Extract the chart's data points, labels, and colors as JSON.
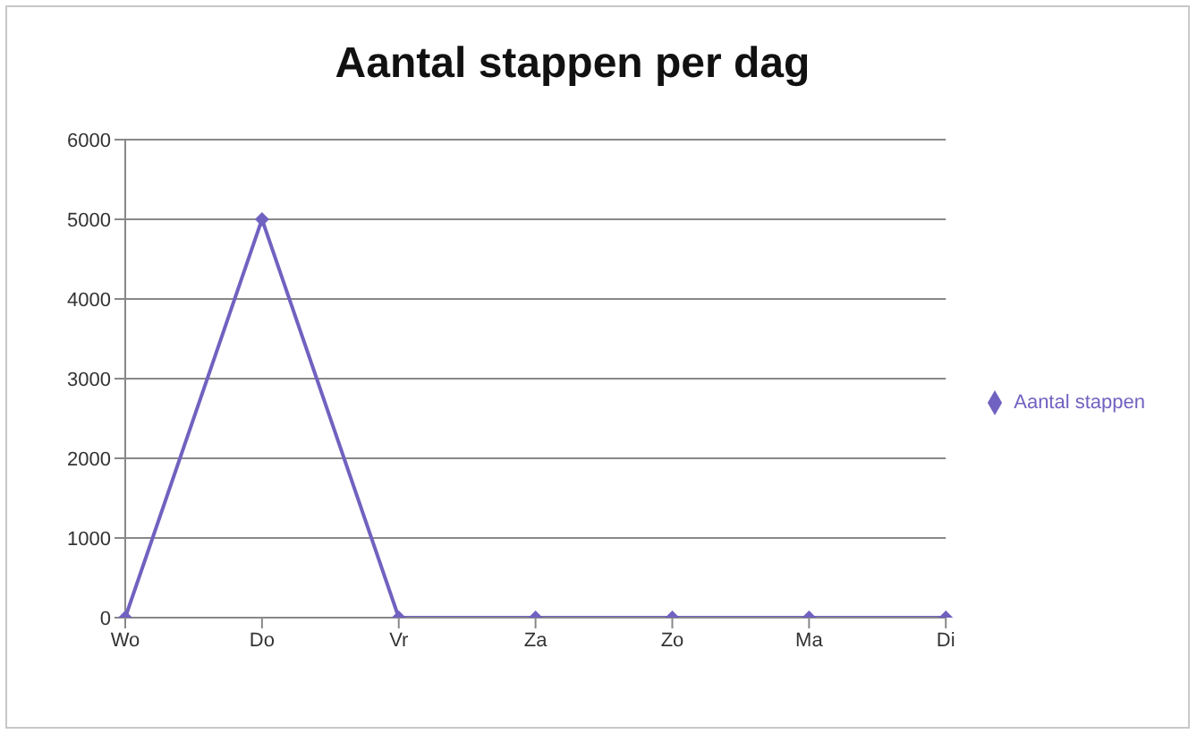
{
  "chart_data": {
    "type": "line",
    "title": "Aantal stappen per dag",
    "categories": [
      "Wo",
      "Do",
      "Vr",
      "Za",
      "Zo",
      "Ma",
      "Di"
    ],
    "series": [
      {
        "name": "Aantal stappen",
        "color": "#7062c0",
        "values": [
          0,
          5000,
          0,
          0,
          0,
          0,
          0
        ]
      }
    ],
    "ylim": [
      0,
      6000
    ],
    "yticks": [
      0,
      1000,
      2000,
      3000,
      4000,
      5000,
      6000
    ],
    "grid": "y",
    "legend": "right",
    "marker": "diamond",
    "line_style": "solid"
  }
}
